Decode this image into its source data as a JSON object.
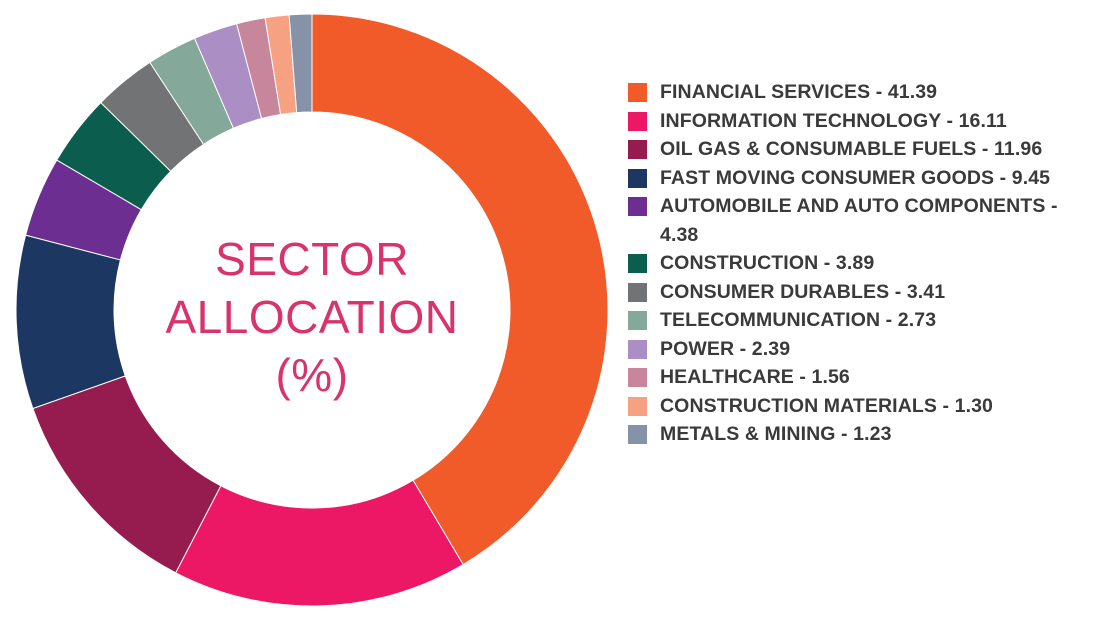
{
  "chart_data": {
    "type": "pie",
    "title": [
      "SECTOR",
      "ALLOCATION",
      "(%)"
    ],
    "slices": [
      {
        "label": "FINANCIAL SERVICES",
        "value": 41.39,
        "color": "#f15a29",
        "legend_text": "FINANCIAL SERVICES - 41.39"
      },
      {
        "label": "INFORMATION TECHNOLOGY",
        "value": 16.11,
        "color": "#ec1866",
        "legend_text": "INFORMATION TECHNOLOGY - 16.11"
      },
      {
        "label": "OIL GAS & CONSUMABLE FUELS",
        "value": 11.96,
        "color": "#961b4e",
        "legend_text": "OIL GAS & CONSUMABLE FUELS - 11.96"
      },
      {
        "label": "FAST MOVING CONSUMER GOODS",
        "value": 9.45,
        "color": "#1c3761",
        "legend_text": "FAST MOVING CONSUMER GOODS - 9.45"
      },
      {
        "label": "AUTOMOBILE AND AUTO COMPONENTS",
        "value": 4.38,
        "color": "#6c2e91",
        "legend_text": "AUTOMOBILE AND AUTO COMPONENTS - 4.38"
      },
      {
        "label": "CONSTRUCTION",
        "value": 3.89,
        "color": "#0b5e4d",
        "legend_text": "CONSTRUCTION - 3.89"
      },
      {
        "label": "CONSUMER DURABLES",
        "value": 3.41,
        "color": "#727374",
        "legend_text": "CONSUMER DURABLES - 3.41"
      },
      {
        "label": "TELECOMMUNICATION",
        "value": 2.73,
        "color": "#84a99a",
        "legend_text": "TELECOMMUNICATION - 2.73"
      },
      {
        "label": "POWER",
        "value": 2.39,
        "color": "#ab8fc4",
        "legend_text": "POWER - 2.39"
      },
      {
        "label": "HEALTHCARE",
        "value": 1.56,
        "color": "#c8869c",
        "legend_text": "HEALTHCARE - 1.56"
      },
      {
        "label": "CONSTRUCTION MATERIALS",
        "value": 1.3,
        "color": "#f6a182",
        "legend_text": "CONSTRUCTION MATERIALS - 1.30"
      },
      {
        "label": "METALS & MINING",
        "value": 1.23,
        "color": "#8592a8",
        "legend_text": "METALS & MINING - 1.23"
      }
    ],
    "donut": true,
    "legend_position": "right"
  }
}
